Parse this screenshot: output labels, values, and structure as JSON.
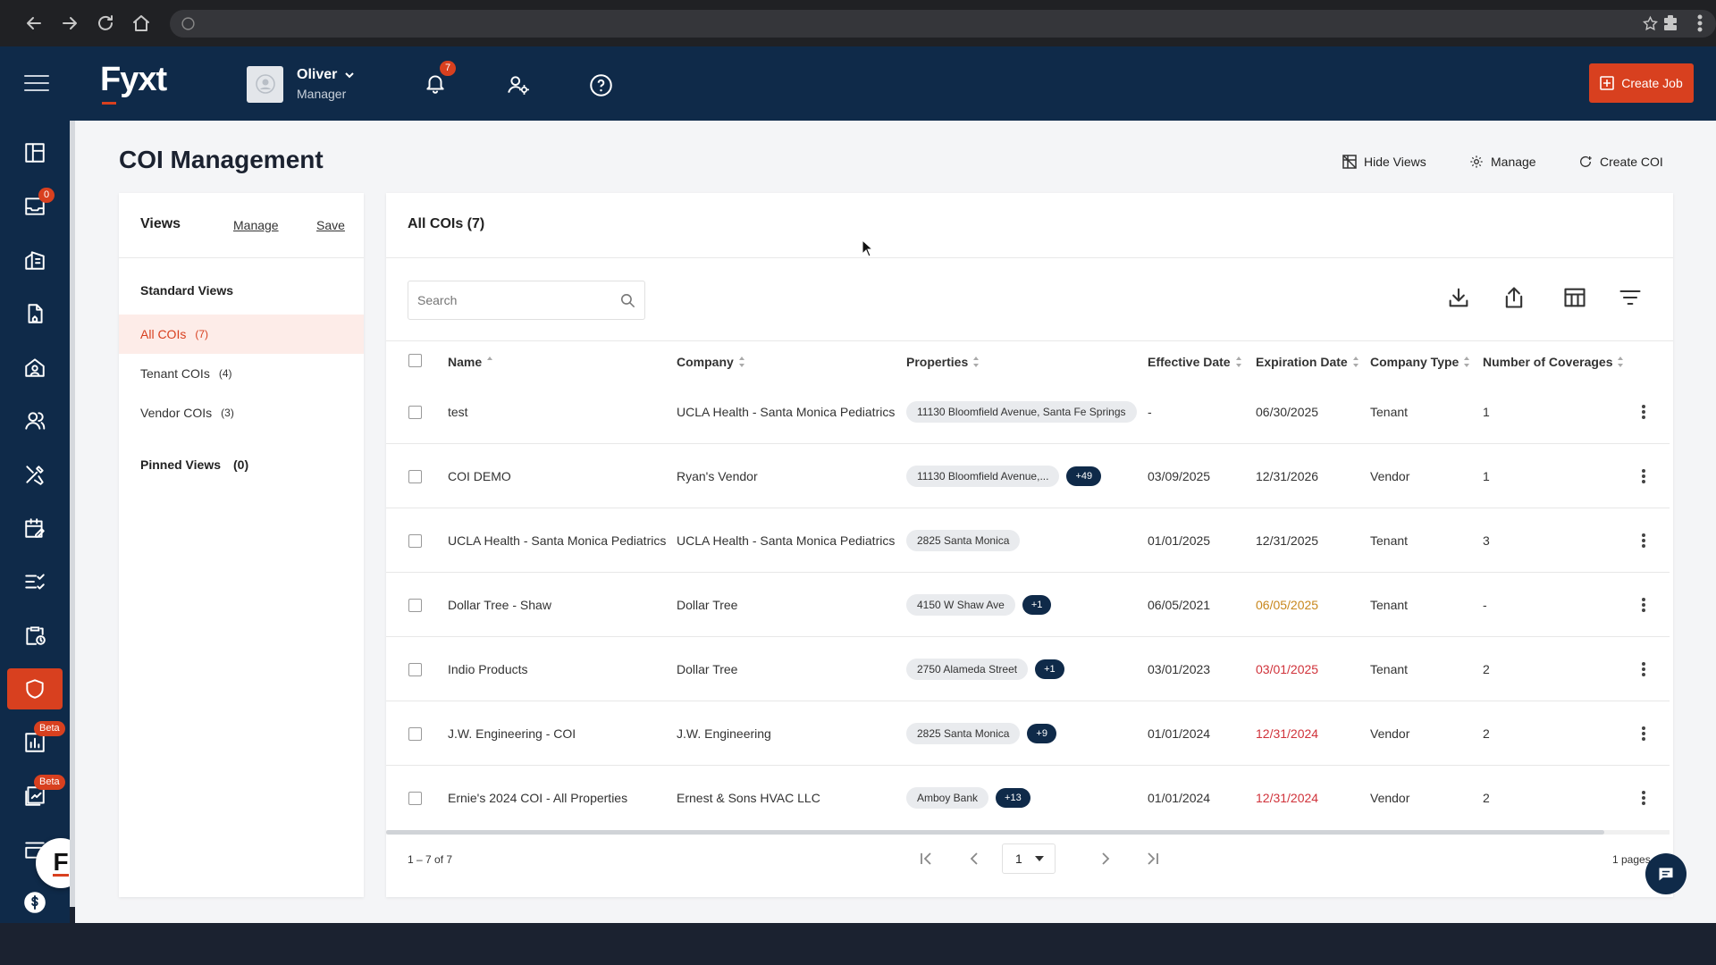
{
  "app": {
    "logo": "Fyxt"
  },
  "user": {
    "name": "Oliver",
    "role": "Manager"
  },
  "notifications": {
    "count": "7"
  },
  "header": {
    "create_job_label": "Create Job"
  },
  "sidebar": {
    "inbox_badge": "0",
    "beta_badge_1": "Beta",
    "beta_badge_2": "Beta",
    "bottom_logo": "F"
  },
  "page": {
    "title": "COI Management",
    "hide_views_label": "Hide Views",
    "manage_label": "Manage",
    "create_coi_label": "Create COI"
  },
  "views": {
    "title": "Views",
    "manage_label": "Manage",
    "save_label": "Save",
    "standard_title": "Standard Views",
    "items": [
      {
        "label": "All COIs",
        "count": "(7)"
      },
      {
        "label": "Tenant COIs",
        "count": "(4)"
      },
      {
        "label": "Vendor COIs",
        "count": "(3)"
      }
    ],
    "pinned_title": "Pinned Views",
    "pinned_count": "(0)"
  },
  "table": {
    "title": "All COIs (7)",
    "search_placeholder": "Search",
    "columns": [
      "Name",
      "Company",
      "Properties",
      "Effective Date",
      "Expiration Date",
      "Company Type",
      "Number of Coverages"
    ],
    "rows": [
      {
        "name": "test",
        "company": "UCLA Health - Santa Monica Pediatrics",
        "property": "11130 Bloomfield Avenue, Santa Fe Springs",
        "more": "",
        "effective": "-",
        "expiration": "06/30/2025",
        "exp_status": "normal",
        "type": "Tenant",
        "coverages": "1"
      },
      {
        "name": "COI DEMO",
        "company": "Ryan's Vendor",
        "property": "11130 Bloomfield Avenue,...",
        "more": "+49",
        "effective": "03/09/2025",
        "expiration": "12/31/2026",
        "exp_status": "normal",
        "type": "Vendor",
        "coverages": "1"
      },
      {
        "name": "UCLA Health - Santa Monica Pediatrics",
        "company": "UCLA Health - Santa Monica Pediatrics",
        "property": "2825 Santa Monica",
        "more": "",
        "effective": "01/01/2025",
        "expiration": "12/31/2025",
        "exp_status": "normal",
        "type": "Tenant",
        "coverages": "3"
      },
      {
        "name": "Dollar Tree - Shaw",
        "company": "Dollar Tree",
        "property": "4150 W Shaw Ave",
        "more": "+1",
        "effective": "06/05/2021",
        "expiration": "06/05/2025",
        "exp_status": "warning",
        "type": "Tenant",
        "coverages": "-"
      },
      {
        "name": "Indio Products",
        "company": "Dollar Tree",
        "property": "2750 Alameda Street",
        "more": "+1",
        "effective": "03/01/2023",
        "expiration": "03/01/2025",
        "exp_status": "expired",
        "type": "Tenant",
        "coverages": "2"
      },
      {
        "name": "J.W. Engineering - COI",
        "company": "J.W. Engineering",
        "property": "2825 Santa Monica",
        "more": "+9",
        "effective": "01/01/2024",
        "expiration": "12/31/2024",
        "exp_status": "expired",
        "type": "Vendor",
        "coverages": "2"
      },
      {
        "name": "Ernie's 2024 COI - All Properties",
        "company": "Ernest & Sons HVAC LLC",
        "property": "Amboy Bank",
        "more": "+13",
        "effective": "01/01/2024",
        "expiration": "12/31/2024",
        "exp_status": "expired",
        "type": "Vendor",
        "coverages": "2"
      }
    ],
    "pagination": {
      "range": "1 – 7 of 7",
      "page": "1",
      "pages": "1 pages"
    }
  },
  "colors": {
    "accent": "#d8401f",
    "navy": "#0f2a49",
    "warning": "#c8871d",
    "expired": "#d0323a"
  },
  "icons": [
    "menu-icon",
    "bell-icon",
    "user-settings-icon",
    "help-icon",
    "dashboard-icon",
    "inbox-icon",
    "buildings-icon",
    "document-icon",
    "home-user-icon",
    "people-icon",
    "tools-icon",
    "calendar-edit-icon",
    "checklist-icon",
    "clipboard-clock-icon",
    "shield-icon",
    "chart-icon",
    "report-icon",
    "stack-icon",
    "dollar-icon",
    "search-icon",
    "download-icon",
    "share-icon",
    "columns-icon",
    "filter-icon",
    "chat-icon"
  ]
}
